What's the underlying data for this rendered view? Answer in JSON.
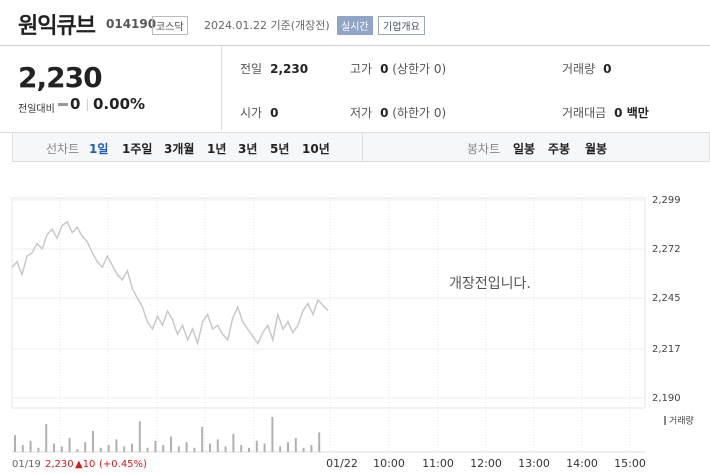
{
  "header": {
    "title": "원익큐브",
    "code": "014190",
    "market": "코스닥",
    "date": "2024.01.22 기준(개장전)",
    "realtime": "실시간",
    "overview": "기업개요"
  },
  "price": {
    "current": "2,230",
    "change_label": "전일대비",
    "change": "0",
    "change_pct": "0.00%"
  },
  "info": [
    {
      "label": "전일",
      "value": "2,230"
    },
    {
      "label": "고가",
      "value": "0",
      "note": "(상한가 0)"
    },
    {
      "label": "거래량",
      "value": "0"
    },
    {
      "label": "시가",
      "value": "0"
    },
    {
      "label": "저가",
      "value": "0",
      "note": "(하한가 0)"
    },
    {
      "label": "거래대금",
      "value": "0 백만"
    }
  ],
  "tabs": {
    "line_head": "선차트",
    "line": [
      "1일",
      "1주일",
      "3개월",
      "1년",
      "3년",
      "5년",
      "10년"
    ],
    "candle_head": "봉차트",
    "candle": [
      "일봉",
      "주봉",
      "월봉"
    ]
  },
  "chart_data": {
    "type": "line",
    "annotation": "개장전입니다.",
    "volume_label": "거래량",
    "x_labels": [
      "01/22",
      "10:00",
      "11:00",
      "12:00",
      "13:00",
      "14:00",
      "15:00"
    ],
    "prev": {
      "date": "01/19",
      "close": "2,230",
      "change": "▲10",
      "change_pct": "(+0.45%)"
    },
    "ylim": [
      2190,
      2299
    ],
    "yticks": [
      {
        "value": 2299,
        "label": "2,299"
      },
      {
        "value": 2272,
        "label": "2,272"
      },
      {
        "value": 2245,
        "label": "2,245"
      },
      {
        "value": 2217,
        "label": "2,217"
      },
      {
        "value": 2190,
        "label": "2,190"
      }
    ],
    "grid": true,
    "series": [
      {
        "color": "#c8c8c8",
        "values": [
          2262,
          2265,
          2258,
          2268,
          2270,
          2275,
          2272,
          2280,
          2283,
          2278,
          2285,
          2287,
          2281,
          2284,
          2279,
          2276,
          2270,
          2265,
          2262,
          2268,
          2263,
          2258,
          2255,
          2260,
          2250,
          2245,
          2240,
          2232,
          2228,
          2235,
          2230,
          2238,
          2233,
          2225,
          2230,
          2222,
          2228,
          2220,
          2232,
          2236,
          2228,
          2230,
          2225,
          2222,
          2234,
          2240,
          2232,
          2228,
          2224,
          2220,
          2226,
          2230,
          2222,
          2236,
          2228,
          2232,
          2226,
          2230,
          2238,
          2242,
          2236,
          2244,
          2241,
          2238
        ]
      }
    ],
    "volume": {
      "color": "#b0b0b0",
      "vlim": [
        0,
        30
      ],
      "values": [
        12,
        5,
        8,
        3,
        20,
        6,
        4,
        10,
        2,
        7,
        15,
        3,
        5,
        9,
        4,
        6,
        22,
        3,
        8,
        5,
        11,
        4,
        7,
        3,
        18,
        6,
        9,
        4,
        13,
        5,
        3,
        8,
        6,
        25,
        4,
        7,
        10,
        3,
        5,
        14
      ]
    }
  }
}
